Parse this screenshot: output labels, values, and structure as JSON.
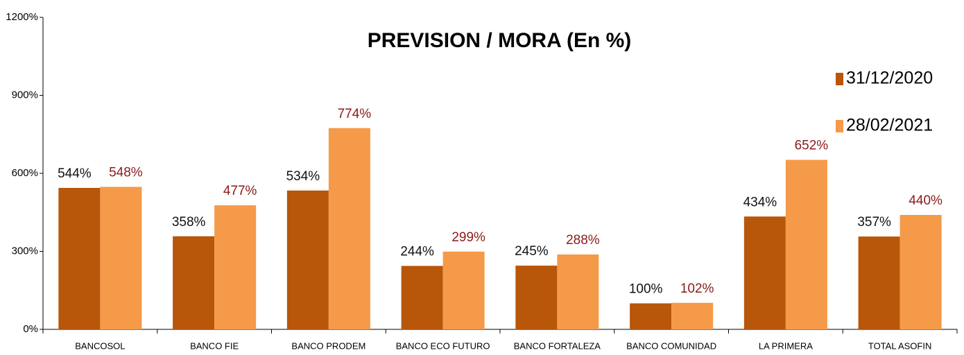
{
  "chart_data": {
    "type": "bar",
    "title": "PREVISION / MORA (En %)",
    "categories": [
      "BANCOSOL",
      "BANCO FIE",
      "BANCO PRODEM",
      "BANCO ECO FUTURO",
      "BANCO FORTALEZA",
      "BANCO COMUNIDAD",
      "LA PRIMERA",
      "TOTAL ASOFIN"
    ],
    "series": [
      {
        "name": "31/12/2020",
        "color": "#b8560a",
        "label_color": "#111111",
        "values": [
          544,
          358,
          534,
          244,
          245,
          100,
          434,
          357
        ],
        "value_labels": [
          "544%",
          "358%",
          "534%",
          "244%",
          "245%",
          "100%",
          "434%",
          "357%"
        ]
      },
      {
        "name": "28/02/2021",
        "color": "#f59a48",
        "label_color": "#8b1a1a",
        "values": [
          548,
          477,
          774,
          299,
          288,
          102,
          652,
          440
        ],
        "value_labels": [
          "548%",
          "477%",
          "774%",
          "299%",
          "288%",
          "102%",
          "652%",
          "440%"
        ]
      }
    ],
    "ylim": [
      0,
      1200
    ],
    "yticks": [
      {
        "value": 0,
        "label": "0%"
      },
      {
        "value": 300,
        "label": "300%"
      },
      {
        "value": 600,
        "label": "600%"
      },
      {
        "value": 900,
        "label": "900%"
      },
      {
        "value": 1200,
        "label": "1200%"
      }
    ],
    "legend": "top-right"
  }
}
